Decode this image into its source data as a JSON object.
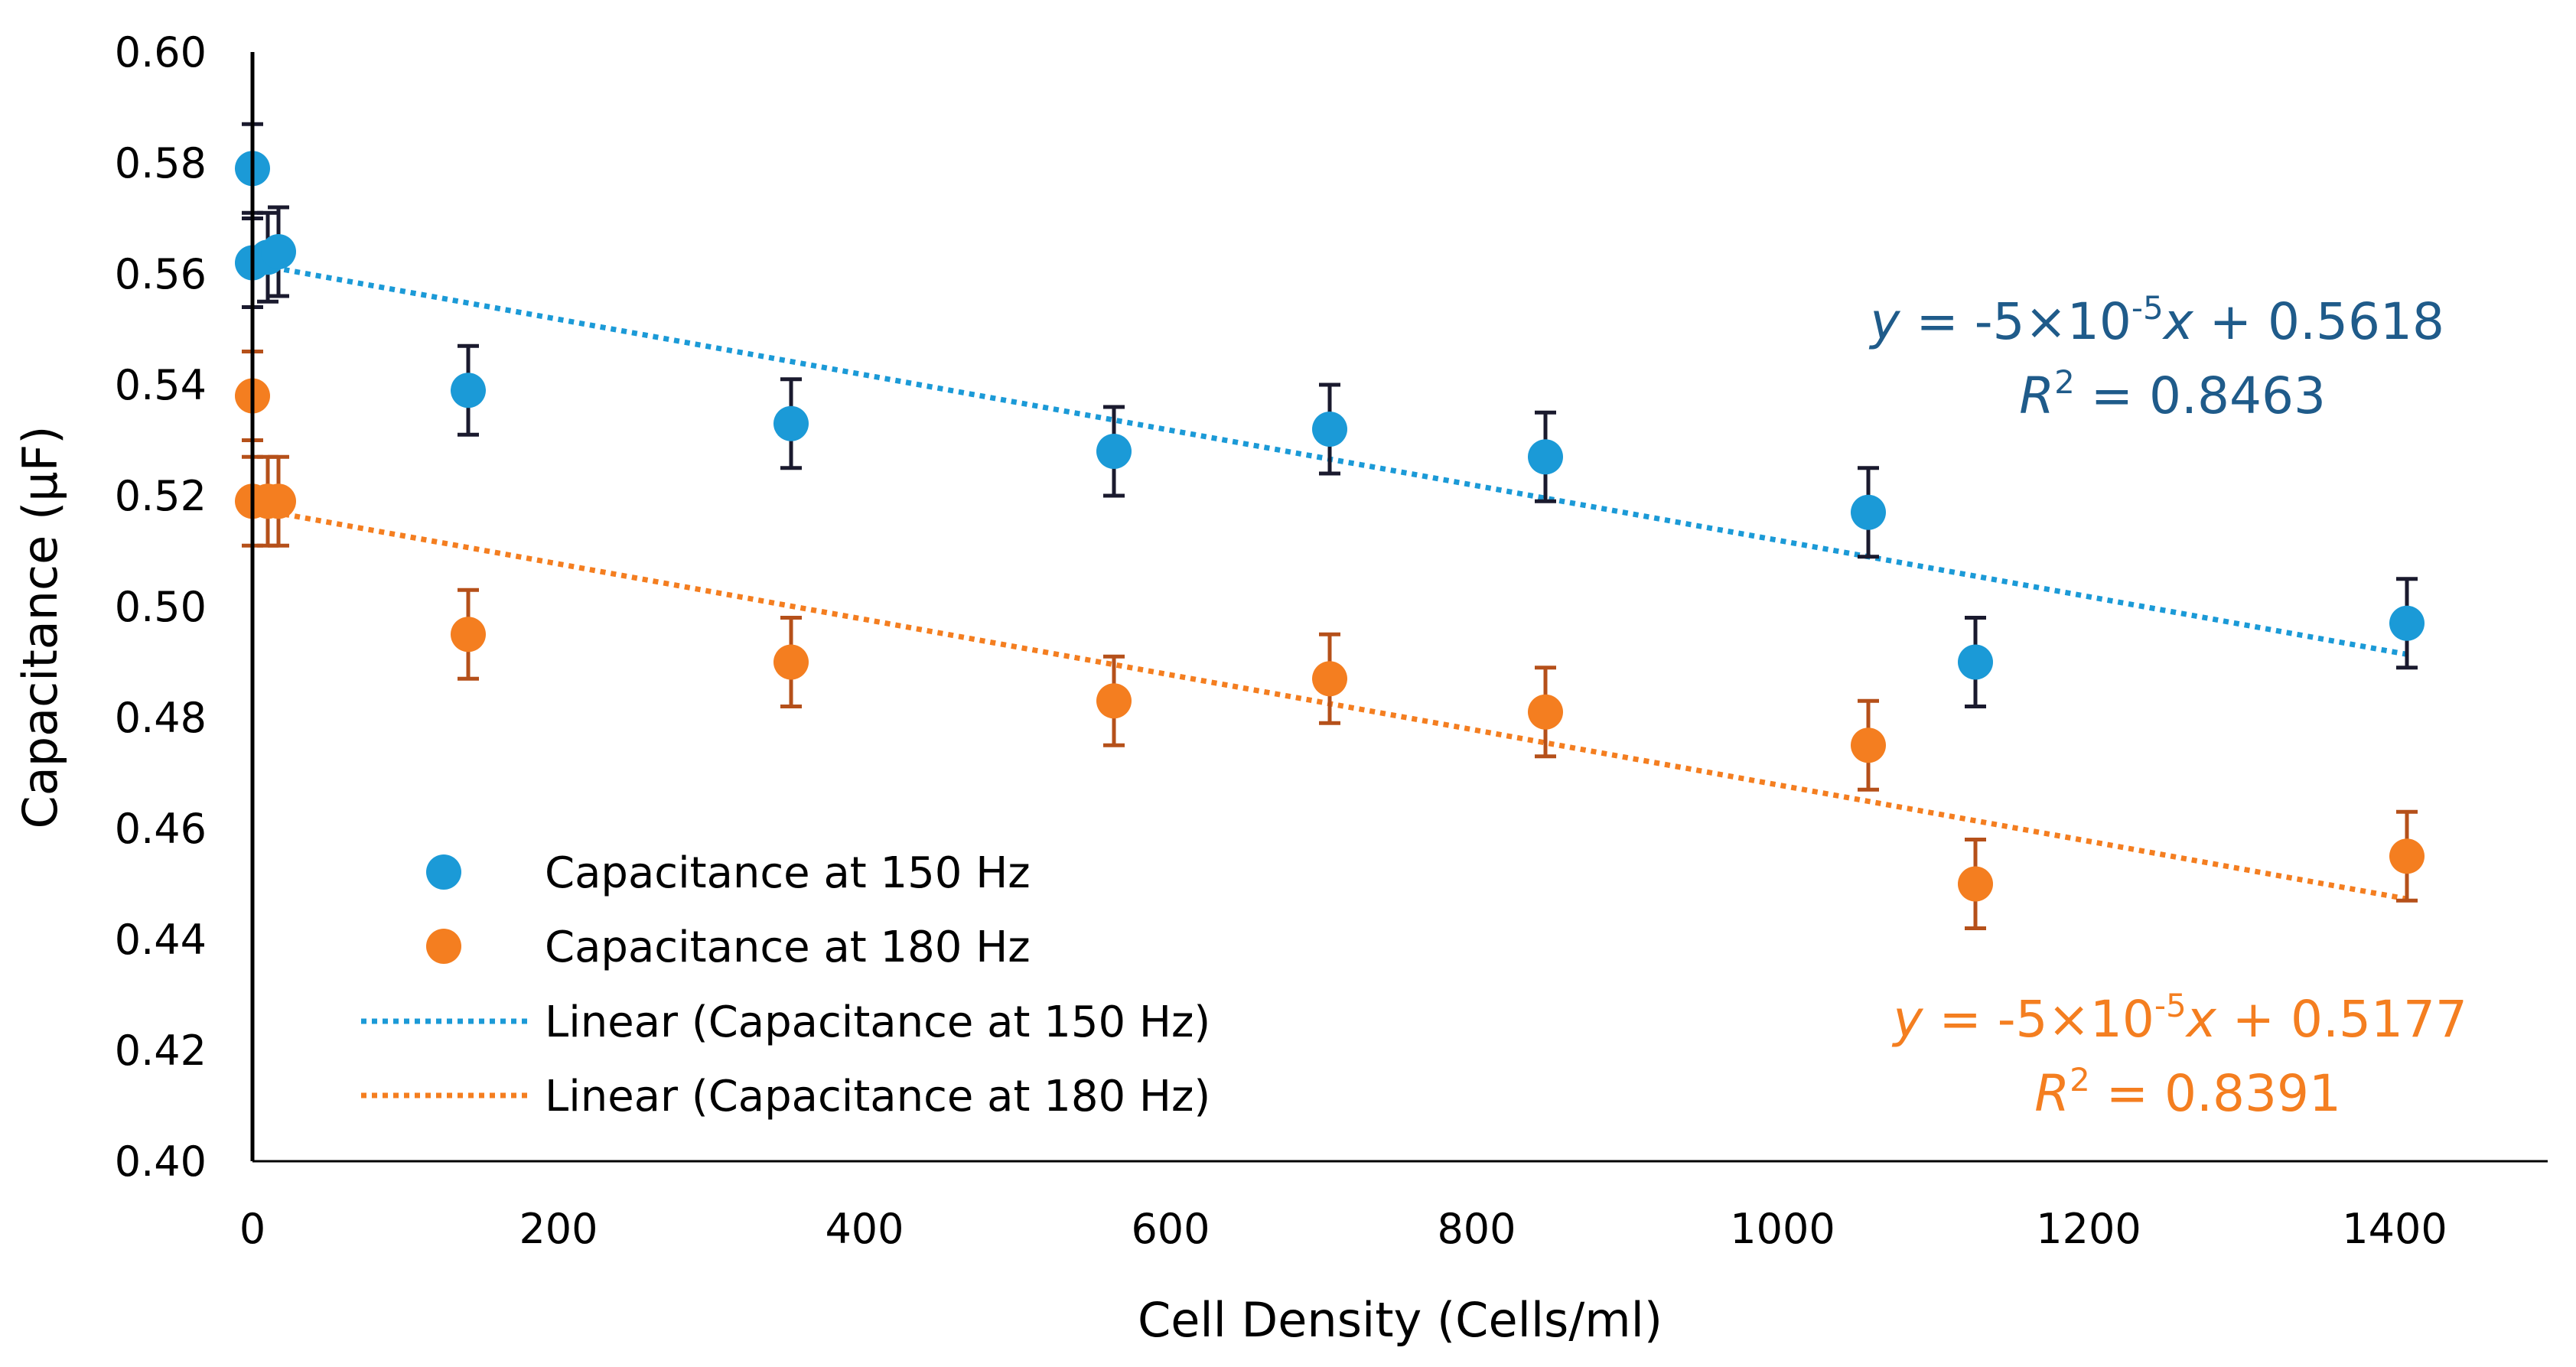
{
  "chart_data": {
    "type": "scatter",
    "title": "",
    "xlabel": "Cell Density (Cells/ml)",
    "ylabel": "Capacitance (µF)",
    "xlim": [
      0,
      1500
    ],
    "ylim": [
      0.4,
      0.6
    ],
    "xticks": [
      0,
      200,
      400,
      600,
      800,
      1000,
      1200,
      1400
    ],
    "xtick_labels": [
      "0",
      "200",
      "400",
      "600",
      "800",
      "1000",
      "1200",
      "1400"
    ],
    "yticks": [
      0.4,
      0.42,
      0.44,
      0.46,
      0.48,
      0.5,
      0.52,
      0.54,
      0.56,
      0.58,
      0.6
    ],
    "ytick_labels": [
      "0.40",
      "0.42",
      "0.44",
      "0.46",
      "0.48",
      "0.50",
      "0.52",
      "0.54",
      "0.56",
      "0.58",
      "0.60"
    ],
    "grid": false,
    "legend_position": "bottom-left",
    "series": [
      {
        "name": "Capacitance at 150 Hz",
        "color": "#1B9AD7",
        "x": [
          0,
          0,
          10,
          17,
          141,
          352,
          563,
          704,
          845,
          1056,
          1126,
          1408
        ],
        "y": [
          0.579,
          0.562,
          0.563,
          0.564,
          0.539,
          0.533,
          0.528,
          0.532,
          0.527,
          0.517,
          0.49,
          0.497
        ],
        "error": [
          0.008,
          0.008,
          0.008,
          0.008,
          0.008,
          0.008,
          0.008,
          0.008,
          0.008,
          0.008,
          0.008,
          0.008
        ],
        "error_color": "#1a1a2e"
      },
      {
        "name": "Capacitance at 180 Hz",
        "color": "#F47E20",
        "x": [
          0,
          0,
          10,
          17,
          141,
          352,
          563,
          704,
          845,
          1056,
          1126,
          1408
        ],
        "y": [
          0.538,
          0.519,
          0.519,
          0.519,
          0.495,
          0.49,
          0.483,
          0.487,
          0.481,
          0.475,
          0.45,
          0.455
        ],
        "error": [
          0.008,
          0.008,
          0.008,
          0.008,
          0.008,
          0.008,
          0.008,
          0.008,
          0.008,
          0.008,
          0.008,
          0.008
        ],
        "error_color": "#B5501A"
      }
    ],
    "trendlines": [
      {
        "name": "Linear (Capacitance at 150 Hz)",
        "color": "#1B9AD7",
        "slope": -5e-05,
        "intercept": 0.5618,
        "x_range": [
          0,
          1408
        ],
        "equation_prefix": "y",
        "equation_mid": " = -5×10",
        "equation_exp": "-5",
        "equation_var": "x",
        "equation_end": " + 0.5618",
        "r2_var": "R",
        "r2_sup": "2",
        "r2_text": " = 0.8463",
        "label_color": "#1F5B8A"
      },
      {
        "name": "Linear (Capacitance at 180 Hz)",
        "color": "#F47E20",
        "slope": -5e-05,
        "intercept": 0.5177,
        "x_range": [
          0,
          1408
        ],
        "equation_prefix": "y",
        "equation_mid": " = -5×10",
        "equation_exp": "-5",
        "equation_var": "x",
        "equation_end": " + 0.5177",
        "r2_var": "R",
        "r2_sup": "2",
        "r2_text": " = 0.8391",
        "label_color": "#F47E20"
      }
    ]
  }
}
